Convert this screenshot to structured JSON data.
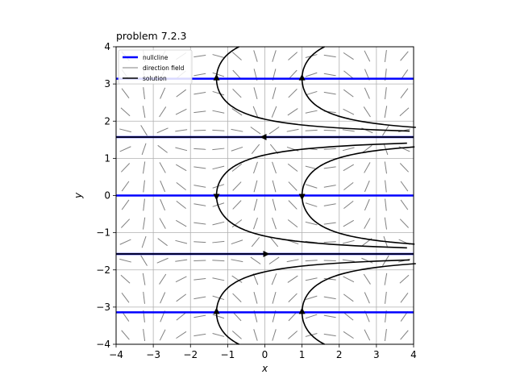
{
  "chart_data": {
    "type": "line",
    "title": "problem 7.2.3",
    "xlabel": "x",
    "ylabel": "y",
    "xlim": [
      -4,
      4
    ],
    "ylim": [
      -4,
      4
    ],
    "xticks": [
      -4,
      -3,
      -2,
      -1,
      0,
      1,
      2,
      3,
      4
    ],
    "yticks": [
      -4,
      -3,
      -2,
      -1,
      0,
      1,
      2,
      3,
      4
    ],
    "xtick_labels": [
      "−4",
      "−3",
      "−2",
      "−1",
      "0",
      "1",
      "2",
      "3",
      "4"
    ],
    "ytick_labels": [
      "−4",
      "−3",
      "−2",
      "−1",
      "0",
      "1",
      "2",
      "3",
      "4"
    ],
    "grid": true,
    "legend_position": "top-left",
    "legend": [
      {
        "label": "nullcline",
        "color": "#0000ff"
      },
      {
        "label": "direction field",
        "color": "#808080"
      },
      {
        "label": "solution",
        "color": "#000000"
      }
    ],
    "nullclines": [
      3.14159,
      1.5708,
      0,
      -1.5708,
      -3.14159
    ],
    "solution_turning_x": [
      -1.3,
      1.0
    ],
    "colors": {
      "nullcline": "#0000ff",
      "field": "#808080",
      "solution": "#000000",
      "grid": "#b0b0b0"
    }
  }
}
